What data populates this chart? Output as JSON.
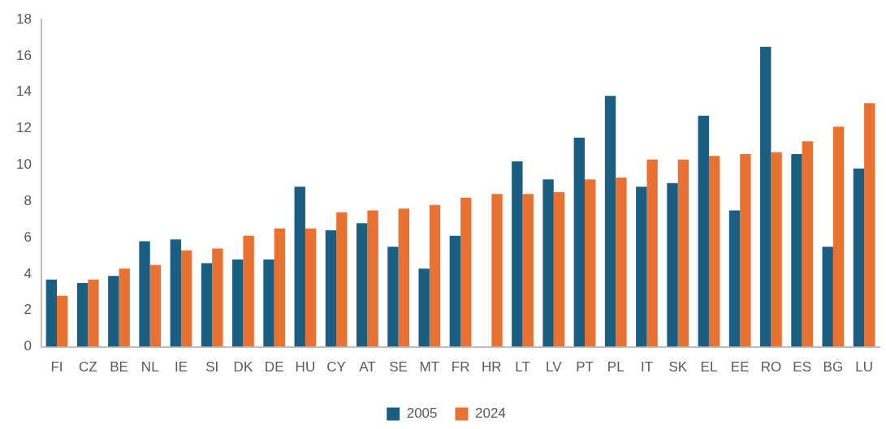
{
  "chart_data": {
    "type": "bar",
    "categories": [
      "FI",
      "CZ",
      "BE",
      "NL",
      "IE",
      "SI",
      "DK",
      "DE",
      "HU",
      "CY",
      "AT",
      "SE",
      "MT",
      "FR",
      "HR",
      "LT",
      "LV",
      "PT",
      "PL",
      "IT",
      "SK",
      "EL",
      "EE",
      "RO",
      "ES",
      "BG",
      "LU"
    ],
    "series": [
      {
        "name": "2005",
        "color": "#1a5f82",
        "values": [
          3.7,
          3.5,
          3.9,
          5.8,
          5.9,
          4.6,
          4.8,
          4.8,
          8.8,
          6.4,
          6.8,
          5.5,
          4.3,
          6.1,
          null,
          10.2,
          9.2,
          11.5,
          13.8,
          8.8,
          9.0,
          12.7,
          7.5,
          16.5,
          10.6,
          5.5,
          9.8
        ]
      },
      {
        "name": "2024",
        "color": "#e97132",
        "values": [
          2.8,
          3.7,
          4.3,
          4.5,
          5.3,
          5.4,
          6.1,
          6.5,
          6.5,
          7.4,
          7.5,
          7.6,
          7.8,
          8.2,
          8.4,
          8.4,
          8.5,
          9.2,
          9.3,
          10.3,
          10.3,
          10.5,
          10.6,
          10.7,
          11.3,
          12.1,
          13.4
        ]
      }
    ],
    "ylim": [
      0,
      18
    ],
    "yticks": [
      0,
      2,
      4,
      6,
      8,
      10,
      12,
      14,
      16,
      18
    ],
    "legend": "bottom"
  }
}
